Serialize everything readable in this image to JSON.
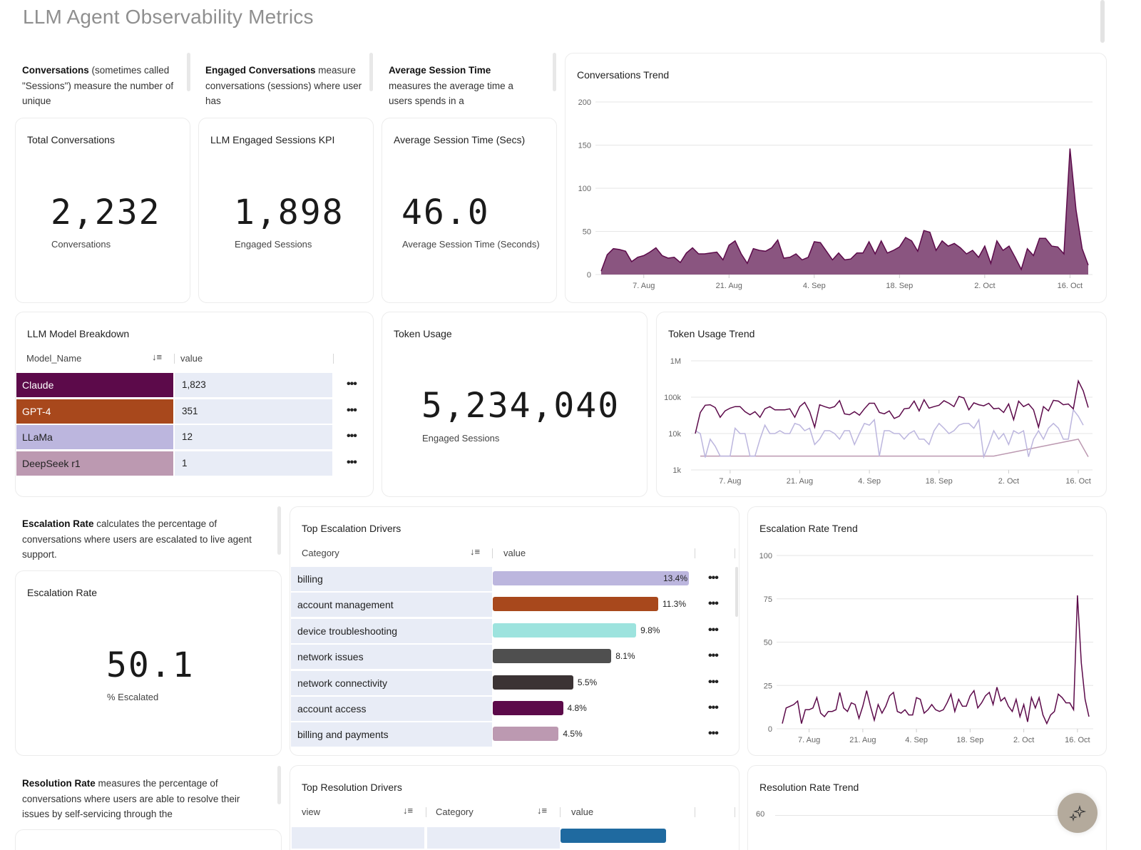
{
  "page": {
    "title": "LLM Agent Observability Metrics"
  },
  "descriptions": {
    "conversations": {
      "bold": "Conversations",
      "text": " (sometimes called \"Sessions\") measure the number of unique"
    },
    "engaged": {
      "bold": "Engaged Conversations",
      "text": " measure conversations (sessions) where user has"
    },
    "session_time": {
      "bold": "Average Session Time",
      "text": " measures the average time a users spends in a"
    },
    "escalation": {
      "bold": "Escalation Rate",
      "text": " calculates the percentage of conversations where users are escalated to live agent support."
    },
    "resolution": {
      "bold": "Resolution Rate",
      "text": " measures the percentage of conversations where users are able to resolve their issues by self-servicing through the"
    }
  },
  "kpis": {
    "total_conversations": {
      "title": "Total Conversations",
      "value": "2,232",
      "subtitle": "Conversations"
    },
    "engaged_sessions": {
      "title": "LLM Engaged Sessions KPI",
      "value": "1,898",
      "subtitle": "Engaged Sessions"
    },
    "avg_session_time": {
      "title": "Average Session Time (Secs)",
      "value": "46.0",
      "subtitle": "Average Session Time (Seconds)"
    },
    "token_usage": {
      "title": "Token Usage",
      "value": "5,234,040",
      "subtitle": "Engaged Sessions"
    },
    "escalation_rate": {
      "title": "Escalation Rate",
      "value": "50.1",
      "subtitle": "% Escalated"
    }
  },
  "model_breakdown": {
    "title": "LLM Model Breakdown",
    "columns": [
      "Model_Name",
      "value"
    ],
    "rows": [
      {
        "name": "Claude",
        "value": "1,823",
        "color": "#5c0a4a",
        "text_color": "#ffffff"
      },
      {
        "name": "GPT-4",
        "value": "351",
        "color": "#a8481c",
        "text_color": "#ffffff"
      },
      {
        "name": "LLaMa",
        "value": "12",
        "color": "#bcb6de",
        "text_color": "#222222"
      },
      {
        "name": "DeepSeek r1",
        "value": "1",
        "color": "#bc99b1",
        "text_color": "#222222"
      }
    ],
    "row_menu_label": "•••"
  },
  "escalation_drivers": {
    "title": "Top Escalation Drivers",
    "columns": [
      "Category",
      "value"
    ],
    "max": 13.4,
    "rows": [
      {
        "category": "billing",
        "value": 13.4,
        "label": "13.4%",
        "color": "#bcb6de"
      },
      {
        "category": "account management",
        "value": 11.3,
        "label": "11.3%",
        "color": "#a8481c"
      },
      {
        "category": "device troubleshooting",
        "value": 9.8,
        "label": "9.8%",
        "color": "#9de3de"
      },
      {
        "category": "network issues",
        "value": 8.1,
        "label": "8.1%",
        "color": "#4f4f4f"
      },
      {
        "category": "network connectivity",
        "value": 5.5,
        "label": "5.5%",
        "color": "#3b3334"
      },
      {
        "category": "account access",
        "value": 4.8,
        "label": "4.8%",
        "color": "#5c0a4a"
      },
      {
        "category": "billing and payments",
        "value": 4.5,
        "label": "4.5%",
        "color": "#bc99b1"
      }
    ],
    "row_menu_label": "•••"
  },
  "resolution_drivers": {
    "title": "Top Resolution Drivers",
    "columns": [
      "view",
      "Category",
      "value"
    ],
    "first_bar_color": "#1f6aa0"
  },
  "resolution_trend": {
    "title": "Resolution Rate Trend",
    "y_first_tick": "60"
  },
  "fab": {
    "icon": "sparkle-icon"
  },
  "chart_data": [
    {
      "id": "conversations_trend",
      "type": "area",
      "title": "Conversations Trend",
      "xlabel": "",
      "ylabel": "",
      "ylim": [
        0,
        200
      ],
      "yticks": [
        0,
        50,
        100,
        150,
        200
      ],
      "xticks": [
        "7. Aug",
        "21. Aug",
        "4. Sep",
        "18. Sep",
        "2. Oct",
        "16. Oct"
      ],
      "xtick_index": [
        7,
        21,
        35,
        49,
        63,
        77
      ],
      "color": "#8a5580",
      "line_color": "#5c0a4a",
      "grid": true,
      "values": [
        4,
        23,
        30,
        29,
        27,
        15,
        20,
        22,
        26,
        31,
        22,
        19,
        20,
        14,
        25,
        31,
        24,
        24,
        25,
        26,
        17,
        34,
        39,
        24,
        13,
        30,
        28,
        27,
        31,
        40,
        19,
        20,
        24,
        17,
        20,
        38,
        37,
        27,
        17,
        25,
        17,
        18,
        25,
        25,
        38,
        24,
        39,
        25,
        28,
        32,
        43,
        39,
        27,
        51,
        49,
        28,
        39,
        33,
        36,
        31,
        24,
        28,
        20,
        33,
        13,
        39,
        28,
        33,
        20,
        6,
        30,
        22,
        42,
        42,
        33,
        32,
        24,
        146,
        75,
        30,
        11
      ]
    },
    {
      "id": "token_usage_trend",
      "type": "line",
      "title": "Token Usage Trend",
      "yscale": "log",
      "ylim": [
        1000,
        1000000
      ],
      "yticks": [
        "1k",
        "10k",
        "100k",
        "1M"
      ],
      "ytick_values": [
        1000,
        10000,
        100000,
        1000000
      ],
      "xticks": [
        "7. Aug",
        "21. Aug",
        "4. Sep",
        "18. Sep",
        "2. Oct",
        "16. Oct"
      ],
      "xtick_index": [
        7,
        21,
        35,
        49,
        63,
        77
      ],
      "grid": true,
      "series": [
        {
          "name": "Claude",
          "color": "#5c0a4a",
          "values": [
            10000,
            38000,
            60000,
            62000,
            52000,
            28000,
            42000,
            50000,
            55000,
            55000,
            40000,
            33000,
            40000,
            28000,
            48000,
            55000,
            45000,
            45000,
            45000,
            48000,
            28000,
            55000,
            72000,
            40000,
            15000,
            62000,
            55000,
            50000,
            55000,
            80000,
            35000,
            33000,
            40000,
            32000,
            48000,
            68000,
            68000,
            38000,
            35000,
            42000,
            26000,
            30000,
            48000,
            50000,
            78000,
            42000,
            85000,
            50000,
            55000,
            60000,
            80000,
            68000,
            55000,
            105000,
            95000,
            45000,
            70000,
            62000,
            58000,
            68000,
            48000,
            50000,
            38000,
            65000,
            24000,
            78000,
            55000,
            65000,
            45000,
            15000,
            55000,
            42000,
            82000,
            78000,
            62000,
            65000,
            48000,
            280000,
            150000,
            52000
          ]
        },
        {
          "name": "LLaMa",
          "color": "#bcb6de",
          "values": [
            12000,
            10000,
            2200,
            7000,
            4500,
            2400,
            2400,
            2400,
            14000,
            10000,
            10000,
            2400,
            2400,
            7000,
            17000,
            10000,
            10000,
            12000,
            10000,
            10000,
            19000,
            17000,
            12000,
            14000,
            5000,
            7000,
            12000,
            12000,
            10000,
            7000,
            12000,
            12000,
            5000,
            10000,
            19000,
            17000,
            24000,
            2400,
            12000,
            12000,
            10000,
            10000,
            7000,
            10000,
            12000,
            7000,
            7000,
            5000,
            12000,
            19000,
            14000,
            10000,
            12000,
            17000,
            19000,
            19000,
            14000,
            24000,
            2300,
            5000,
            12000,
            7000,
            10000,
            5000,
            12000,
            10000,
            12000,
            2300,
            7000,
            12000,
            7000,
            14000,
            19000,
            14000,
            7000,
            7000,
            45000,
            30000,
            17000
          ]
        },
        {
          "name": "DeepSeek r1",
          "color": "#bc99b1",
          "points": [
            [
              1,
              2400
            ],
            [
              60,
              2400
            ],
            [
              77,
              7000
            ],
            [
              79,
              2300
            ]
          ]
        }
      ]
    },
    {
      "id": "escalation_rate_trend",
      "type": "line",
      "title": "Escalation Rate Trend",
      "ylim": [
        0,
        100
      ],
      "yticks": [
        0,
        25,
        50,
        75,
        100
      ],
      "xticks": [
        "7. Aug",
        "21. Aug",
        "4. Sep",
        "18. Sep",
        "2. Oct",
        "16. Oct"
      ],
      "xtick_index": [
        7,
        21,
        35,
        49,
        63,
        77
      ],
      "color": "#5c0a4a",
      "grid": true,
      "values": [
        3,
        12,
        13,
        14,
        16,
        3,
        11,
        11,
        12,
        18,
        9,
        7,
        10,
        10,
        11,
        21,
        12,
        10,
        15,
        14,
        6,
        13,
        22,
        13,
        5,
        14,
        9,
        13,
        19,
        21,
        10,
        9,
        11,
        8,
        8,
        18,
        17,
        9,
        11,
        14,
        11,
        10,
        11,
        15,
        20,
        10,
        17,
        13,
        13,
        19,
        22,
        12,
        15,
        19,
        21,
        14,
        24,
        16,
        18,
        13,
        10,
        17,
        7,
        14,
        4,
        18,
        12,
        18,
        8,
        3,
        8,
        10,
        20,
        18,
        15,
        15,
        11,
        77,
        38,
        17,
        7
      ]
    }
  ]
}
